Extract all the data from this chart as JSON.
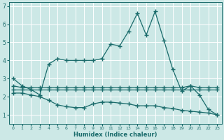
{
  "xlabel": "Humidex (Indice chaleur)",
  "bg_color": "#cce8e6",
  "line_color": "#1a6b6b",
  "grid_color": "#ffffff",
  "xlim": [
    -0.5,
    23.5
  ],
  "ylim": [
    0.5,
    7.2
  ],
  "yticks": [
    1,
    2,
    3,
    4,
    5,
    6,
    7
  ],
  "xticks": [
    0,
    1,
    2,
    3,
    4,
    5,
    6,
    7,
    8,
    9,
    10,
    11,
    12,
    13,
    14,
    15,
    16,
    17,
    18,
    19,
    20,
    21,
    22,
    23
  ],
  "lines": [
    {
      "x": [
        0,
        1,
        2,
        3,
        4,
        5,
        6,
        7,
        8,
        9,
        10,
        11,
        12,
        13,
        14,
        15,
        16,
        17,
        18,
        19,
        20,
        21,
        22,
        23
      ],
      "y": [
        3.0,
        2.6,
        2.4,
        2.1,
        3.8,
        4.1,
        4.0,
        4.0,
        4.0,
        4.0,
        4.1,
        4.9,
        4.8,
        5.6,
        6.6,
        5.4,
        6.7,
        5.1,
        3.5,
        2.3,
        2.6,
        2.1,
        1.3,
        1.0
      ]
    },
    {
      "x": [
        0,
        1,
        2,
        3,
        4,
        5,
        6,
        7,
        8,
        9,
        10,
        11,
        12,
        13,
        14,
        15,
        16,
        17,
        18,
        19,
        20,
        21,
        22,
        23
      ],
      "y": [
        2.6,
        2.5,
        2.5,
        2.5,
        2.5,
        2.5,
        2.5,
        2.5,
        2.5,
        2.5,
        2.5,
        2.5,
        2.5,
        2.5,
        2.5,
        2.5,
        2.5,
        2.5,
        2.5,
        2.5,
        2.6,
        2.5,
        2.5,
        2.5
      ]
    },
    {
      "x": [
        0,
        1,
        2,
        3,
        4,
        5,
        6,
        7,
        8,
        9,
        10,
        11,
        12,
        13,
        14,
        15,
        16,
        17,
        18,
        19,
        20,
        21,
        22,
        23
      ],
      "y": [
        2.4,
        2.4,
        2.4,
        2.4,
        2.4,
        2.4,
        2.4,
        2.4,
        2.4,
        2.4,
        2.4,
        2.4,
        2.4,
        2.4,
        2.4,
        2.4,
        2.4,
        2.4,
        2.4,
        2.4,
        2.4,
        2.4,
        2.4,
        2.4
      ]
    },
    {
      "x": [
        0,
        1,
        2,
        3,
        4,
        5,
        6,
        7,
        8,
        9,
        10,
        11,
        12,
        13,
        14,
        15,
        16,
        17,
        18,
        19,
        20,
        21,
        22,
        23
      ],
      "y": [
        2.2,
        2.2,
        2.1,
        2.0,
        1.8,
        1.55,
        1.45,
        1.4,
        1.4,
        1.6,
        1.7,
        1.7,
        1.65,
        1.6,
        1.5,
        1.5,
        1.5,
        1.4,
        1.35,
        1.25,
        1.2,
        1.15,
        1.1,
        1.0
      ]
    }
  ],
  "marker": "+",
  "markersize": 4,
  "linewidth": 0.9
}
